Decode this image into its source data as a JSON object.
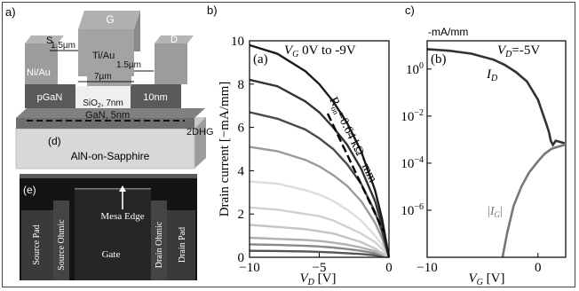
{
  "panel_labels": {
    "a": "a)",
    "b": "b)",
    "c": "c)",
    "d": "(d)",
    "e": "(e)"
  },
  "device": {
    "gate": "G",
    "source": "S",
    "drain": "D",
    "metal_gate": "Ti/Au",
    "metal_contact": "Ni/Au",
    "dim_left": "1.5µm",
    "dim_right": "1.5µm",
    "dim_gate": "7µm",
    "pgan": "pGaN",
    "oxide": "SiO",
    "oxide_sub": "2",
    "oxide_thickness": ", 7nm",
    "thickness_right": "10nm",
    "channel": "GaN, 5nm",
    "gas": "2DHG",
    "substrate": "AlN-on-Sapphire"
  },
  "micrograph": {
    "source_pad": "Source Pad",
    "source_ohmic": "Source Ohmic",
    "gate": "Gate",
    "mesa_edge": "Mesa Edge",
    "drain_ohmic": "Drain Ohmic",
    "drain_pad": "Drain Pad"
  },
  "colors": {
    "curve_dark": "#1a1a1a",
    "curve_gray": "#777777",
    "axis": "#000000"
  },
  "chart_data": [
    {
      "type": "line",
      "panel": "(a)",
      "legend_text": "V_G 0V to -9V",
      "legend_var": "V",
      "legend_sub": "G",
      "legend_rest": " 0V to -9V",
      "annotation": "R_on = 0.64 kΩ·mm",
      "annot_pre": "R",
      "annot_sub": "on",
      "annot_post": "=0.64 kΩ · mm",
      "xlabel": "V_D [V]",
      "xlabel_var": "V",
      "xlabel_sub": "D",
      "xlabel_unit": " [V]",
      "ylabel": "Drain current [−mA/mm]",
      "xlim": [
        -10,
        0
      ],
      "ylim": [
        0,
        10
      ],
      "xticks": [
        -10,
        -5,
        0
      ],
      "xtick_labels": [
        "−10",
        "−5",
        "0"
      ],
      "yticks": [
        0,
        2,
        4,
        6,
        8,
        10
      ],
      "x": [
        -10,
        -8,
        -6,
        -5,
        -4,
        -3,
        -2,
        -1,
        -0.5,
        0
      ],
      "series": [
        {
          "values": [
            9.8,
            9.4,
            8.6,
            8.0,
            7.2,
            6.2,
            4.9,
            3.1,
            1.8,
            0.0
          ],
          "color": "#1a1a1a"
        },
        {
          "values": [
            8.2,
            7.9,
            7.2,
            6.7,
            6.0,
            5.2,
            4.1,
            2.6,
            1.5,
            0.0
          ],
          "color": "#333333"
        },
        {
          "values": [
            6.7,
            6.4,
            5.9,
            5.5,
            5.0,
            4.3,
            3.4,
            2.1,
            1.2,
            0.0
          ],
          "color": "#4a4a4a"
        },
        {
          "values": [
            5.1,
            4.9,
            4.5,
            4.2,
            3.8,
            3.3,
            2.6,
            1.6,
            0.9,
            0.0
          ],
          "color": "#9a9a9a"
        },
        {
          "values": [
            3.5,
            3.4,
            3.1,
            2.9,
            2.6,
            2.2,
            1.7,
            1.0,
            0.6,
            0.0
          ],
          "color": "#dddddd"
        },
        {
          "values": [
            2.3,
            2.2,
            2.0,
            1.9,
            1.7,
            1.4,
            1.1,
            0.7,
            0.4,
            0.0
          ],
          "color": "#d0d0d0"
        },
        {
          "values": [
            1.5,
            1.4,
            1.3,
            1.2,
            1.1,
            0.9,
            0.7,
            0.4,
            0.2,
            0.0
          ],
          "color": "#c4c4c4"
        },
        {
          "values": [
            0.9,
            0.85,
            0.8,
            0.75,
            0.68,
            0.58,
            0.45,
            0.28,
            0.15,
            0.0
          ],
          "color": "#b0b0b0"
        },
        {
          "values": [
            0.6,
            0.57,
            0.53,
            0.5,
            0.45,
            0.38,
            0.3,
            0.18,
            0.1,
            0.0
          ],
          "color": "#888888"
        },
        {
          "values": [
            0.3,
            0.29,
            0.27,
            0.25,
            0.22,
            0.19,
            0.15,
            0.09,
            0.05,
            0.0
          ],
          "color": "#555555"
        }
      ]
    },
    {
      "type": "line",
      "panel": "(b)",
      "scale": "log",
      "top_label": "-mA/mm",
      "condition_text": "V_D=-5V",
      "cond_var": "V",
      "cond_sub": "D",
      "cond_rest": "=-5V",
      "xlabel": "V_G [V]",
      "xlabel_var": "V",
      "xlabel_sub": "G",
      "xlabel_unit": " [V]",
      "xlim": [
        -10,
        2.5
      ],
      "ylim_exp": [
        -8,
        1.2
      ],
      "xticks": [
        -10,
        0
      ],
      "xtick_labels": [
        "−10",
        "0"
      ],
      "ytick_exps": [
        0,
        -2,
        -4,
        -6
      ],
      "series": [
        {
          "name": "I_D",
          "label_var": "I",
          "label_sub": "D",
          "color": "#333333",
          "x": [
            -10,
            -8,
            -6,
            -4,
            -3,
            -2,
            -1,
            0,
            0.8,
            1.0,
            1.15,
            1.35,
            1.6,
            2.0,
            2.4
          ],
          "values": [
            7.0,
            6.0,
            4.5,
            2.5,
            1.5,
            0.75,
            0.3,
            0.05,
            0.004,
            0.002,
            0.0009,
            0.0006,
            0.0009,
            0.0008,
            0.0007
          ]
        },
        {
          "name": "|I_G|",
          "label_var": "I",
          "label_sub": "G",
          "color": "#777777",
          "x": [
            -3.2,
            -2.8,
            -2.2,
            -1.5,
            -0.8,
            0,
            0.6,
            1.2,
            1.8,
            2.4
          ],
          "values": [
            1e-08,
            1e-07,
            1.5e-06,
            1e-05,
            4e-05,
            0.00012,
            0.00025,
            0.0004,
            0.0005,
            0.0006
          ]
        }
      ]
    }
  ]
}
